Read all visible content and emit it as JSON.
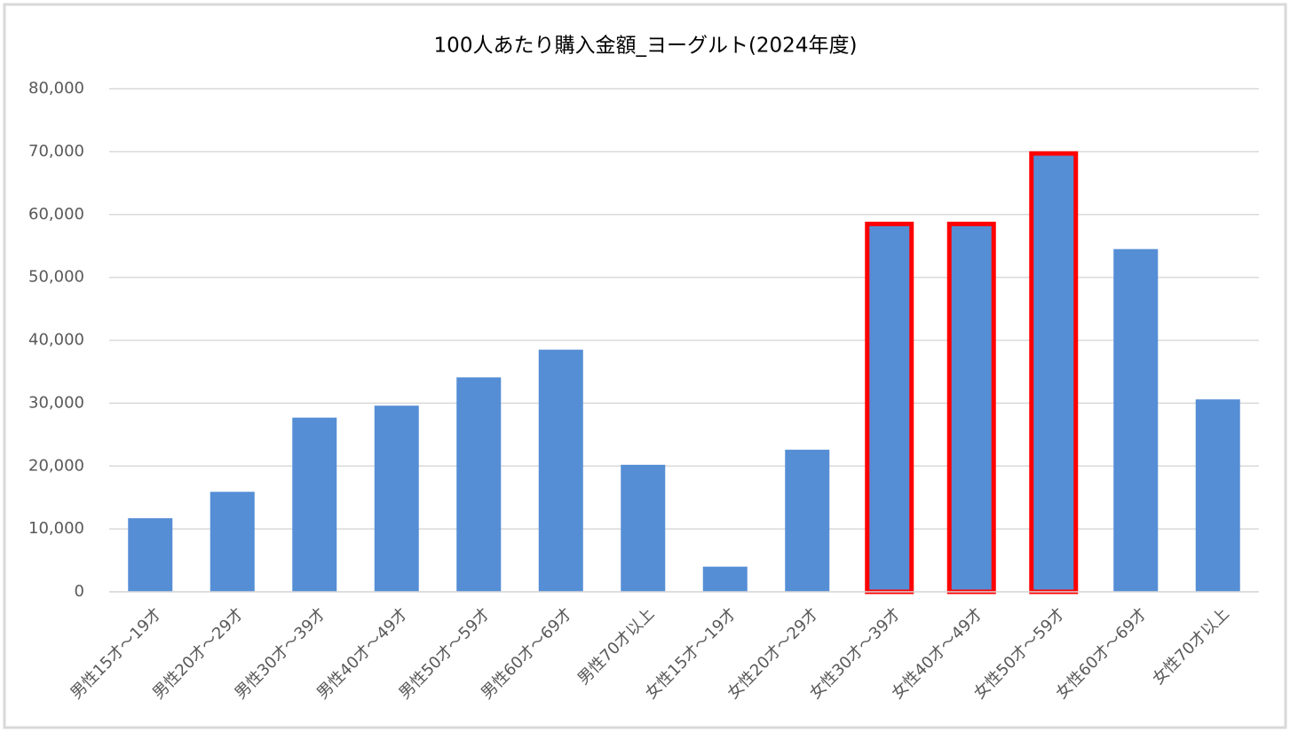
{
  "chart_data": {
    "type": "bar",
    "title": "100人あたり購入金額_ヨーグルト(2024年度)",
    "categories": [
      "男性15才～19才",
      "男性20才～29才",
      "男性30才～39才",
      "男性40才～49才",
      "男性50才～59才",
      "男性60才～69才",
      "男性70才以上",
      "女性15才～19才",
      "女性20才～29才",
      "女性30才～39才",
      "女性40才～49才",
      "女性50才～59才",
      "女性60才～69才",
      "女性70才以上"
    ],
    "values": [
      11700,
      15900,
      27700,
      29600,
      34100,
      38500,
      20200,
      4000,
      22600,
      58500,
      58500,
      69700,
      54500,
      30600
    ],
    "color": "#558ed5",
    "highlighted": [
      9,
      10,
      11
    ],
    "highlight_color": "#ff0000",
    "ylim": [
      0,
      80000
    ],
    "yticks": [
      0,
      {
        "value": 10000,
        "label": "10,000"
      },
      {
        "value": 20000,
        "label": "20,000"
      },
      {
        "value": 30000,
        "label": "30,000"
      },
      {
        "value": 40000,
        "label": "40,000"
      },
      {
        "value": 50000,
        "label": "50,000"
      },
      {
        "value": 60000,
        "label": "60,000"
      },
      {
        "value": 70000,
        "label": "70,000"
      },
      {
        "value": 80000,
        "label": "80,000"
      }
    ],
    "grid": true
  }
}
